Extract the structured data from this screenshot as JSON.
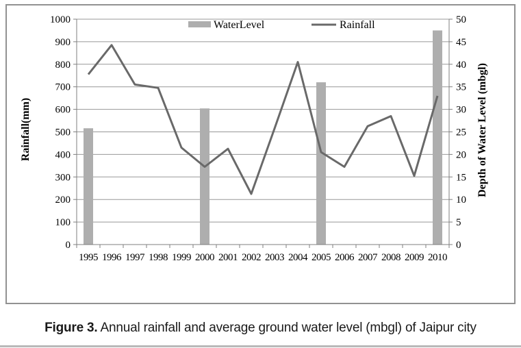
{
  "figure": {
    "caption_label": "Figure 3.",
    "caption_text": " Annual rainfall and average ground water level (mbgl) of Jaipur city"
  },
  "chart_data": {
    "type": "combo-bar-line",
    "title": "",
    "categories": [
      "1995",
      "1996",
      "1997",
      "1998",
      "1999",
      "2000",
      "2001",
      "2002",
      "2003",
      "2004",
      "2005",
      "2006",
      "2007",
      "2008",
      "2009",
      "2010"
    ],
    "series": [
      {
        "name": "WaterLevel",
        "type": "bar",
        "axis": "right",
        "values": [
          25.8,
          null,
          null,
          null,
          null,
          30.2,
          null,
          null,
          null,
          null,
          36.0,
          null,
          null,
          null,
          null,
          47.5
        ]
      },
      {
        "name": "Rainfall",
        "type": "line",
        "axis": "left",
        "values": [
          755,
          885,
          710,
          695,
          430,
          345,
          425,
          225,
          515,
          810,
          410,
          345,
          525,
          570,
          305,
          660
        ]
      }
    ],
    "left_axis": {
      "label": "Rainfall(mm)",
      "min": 0,
      "max": 1000,
      "step": 100,
      "ticks": [
        "1000",
        "900",
        "800",
        "700",
        "600",
        "500",
        "400",
        "300",
        "200",
        "100",
        "0"
      ]
    },
    "right_axis": {
      "label": "Depth of Water Level (mbgl)",
      "min": 0,
      "max": 50,
      "step": 5,
      "ticks": [
        "50",
        "45",
        "40",
        "35",
        "30",
        "25",
        "20",
        "15",
        "10",
        "5",
        "0"
      ]
    },
    "legend": {
      "position": "top",
      "items": [
        {
          "label": "WaterLevel",
          "swatch": "bar"
        },
        {
          "label": "Rainfall",
          "swatch": "line"
        }
      ]
    },
    "grid": true,
    "colors": {
      "bar": "#aeaeae",
      "line": "#696969",
      "grid": "#979797",
      "axis": "#7f7f7f",
      "tick": "#7f7f7f",
      "text": "#000000",
      "figure_border": "#919191",
      "bottom_rule": "#b9b9b9"
    }
  }
}
